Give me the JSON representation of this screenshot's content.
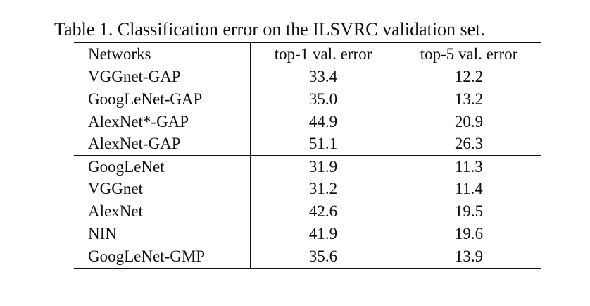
{
  "caption": "Table 1. Classification error on the ILSVRC validation set.",
  "columns": [
    "Networks",
    "top-1 val. error",
    "top-5 val. error"
  ],
  "rows": [
    {
      "network": "VGGnet-GAP",
      "top1": "33.4",
      "top5": "12.2"
    },
    {
      "network": "GoogLeNet-GAP",
      "top1": "35.0",
      "top5": "13.2"
    },
    {
      "network": "AlexNet*-GAP",
      "top1": "44.9",
      "top5": "20.9"
    },
    {
      "network": "AlexNet-GAP",
      "top1": "51.1",
      "top5": "26.3"
    },
    {
      "network": "GoogLeNet",
      "top1": "31.9",
      "top5": "11.3"
    },
    {
      "network": "VGGnet",
      "top1": "31.2",
      "top5": "11.4"
    },
    {
      "network": "AlexNet",
      "top1": "42.6",
      "top5": "19.5"
    },
    {
      "network": "NIN",
      "top1": "41.9",
      "top5": "19.6"
    },
    {
      "network": "GoogLeNet-GMP",
      "top1": "35.6",
      "top5": "13.9"
    }
  ]
}
